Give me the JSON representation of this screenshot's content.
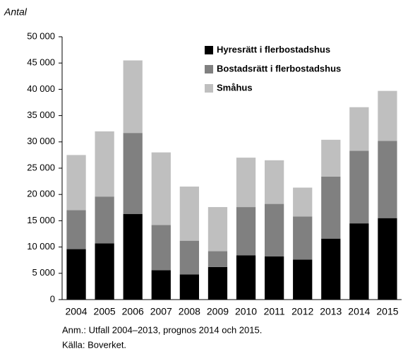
{
  "chart_data": {
    "type": "stacked_bar",
    "y_label": "Antal",
    "categories": [
      "2004",
      "2005",
      "2006",
      "2007",
      "2008",
      "2009",
      "2010",
      "2011",
      "2012",
      "2013",
      "2014",
      "2015"
    ],
    "series": [
      {
        "name": "Hyresrätt i flerbostadshus",
        "color": "#000000",
        "values": [
          9600,
          10700,
          16300,
          5600,
          4800,
          6200,
          8400,
          8200,
          7600,
          11600,
          14500,
          15500
        ]
      },
      {
        "name": "Bostadsrätt i flerbostadshus",
        "color": "#808080",
        "values": [
          7400,
          8900,
          15400,
          8600,
          6400,
          3000,
          9200,
          10000,
          8200,
          11800,
          13800,
          14700
        ]
      },
      {
        "name": "Småhus",
        "color": "#bfbfbf",
        "values": [
          10500,
          12400,
          13800,
          13800,
          10300,
          8400,
          9400,
          8300,
          5500,
          7000,
          8300,
          9500
        ]
      }
    ],
    "ylim": [
      0,
      50000
    ],
    "yticks": [
      0,
      {
        "value": 5000,
        "label": "5 000"
      },
      {
        "value": 10000,
        "label": "10 000"
      },
      {
        "value": 15000,
        "label": "15 000"
      },
      {
        "value": 20000,
        "label": "20 000"
      },
      {
        "value": 25000,
        "label": "25 000"
      },
      {
        "value": 30000,
        "label": "30 000"
      },
      {
        "value": 35000,
        "label": "35 000"
      },
      {
        "value": 40000,
        "label": "40 000"
      },
      {
        "value": 45000,
        "label": "45 000"
      },
      {
        "value": 50000,
        "label": "50 000"
      }
    ],
    "notes": [
      "Anm.: Utfall 2004–2013, prognos 2014 och 2015.",
      "Källa: Boverket."
    ]
  }
}
